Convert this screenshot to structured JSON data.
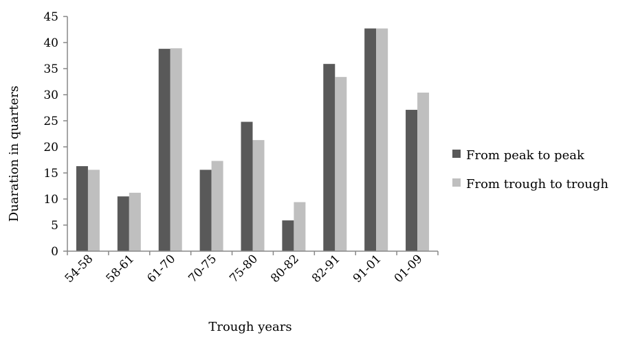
{
  "chart_data": {
    "type": "bar",
    "title": "",
    "xlabel": "Trough years",
    "ylabel": "Duaration in quarters",
    "categories": [
      "54-58",
      "58-61",
      "61-70",
      "70-75",
      "75-80",
      "80-82",
      "82-91",
      "91-01",
      "01-09"
    ],
    "series": [
      {
        "name": "From peak to peak",
        "values": [
          16.3,
          10.5,
          38.8,
          15.6,
          24.8,
          5.9,
          35.9,
          42.7,
          27.1
        ],
        "color": "#595959"
      },
      {
        "name": "From trough to trough",
        "values": [
          15.6,
          11.2,
          38.9,
          17.3,
          21.3,
          9.4,
          33.4,
          42.7,
          30.4
        ],
        "color": "#bfbfbf"
      }
    ],
    "ylim": [
      0,
      45
    ],
    "yticks": [
      0,
      5,
      10,
      15,
      20,
      25,
      30,
      35,
      40,
      45
    ],
    "grid": false,
    "legend_position": "right"
  }
}
